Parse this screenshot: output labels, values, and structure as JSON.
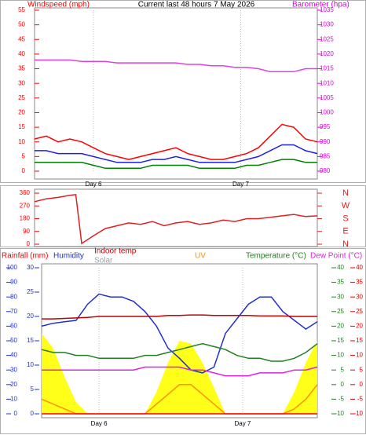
{
  "chart_data": [
    {
      "type": "line",
      "title": "Current last 48 hours 7 May 2026",
      "ylabel": "Windspeed (mph)",
      "y2label": "Barometer (hpa)",
      "x": [
        0,
        2,
        4,
        6,
        8,
        10,
        12,
        14,
        16,
        18,
        20,
        22,
        24,
        26,
        28,
        30,
        32,
        34,
        36,
        38,
        40,
        42,
        44,
        46,
        48
      ],
      "xlim": [
        0,
        48
      ],
      "xticks": [
        {
          "value": 10,
          "label": "Day 6"
        },
        {
          "value": 35,
          "label": "Day 7"
        }
      ],
      "ylim": [
        0,
        55
      ],
      "yticks": [
        0,
        5,
        10,
        15,
        20,
        25,
        30,
        35,
        40,
        45,
        50,
        55
      ],
      "y2lim": [
        980,
        1035
      ],
      "y2ticks": [
        980,
        985,
        990,
        995,
        1000,
        1005,
        1010,
        1015,
        1020,
        1025,
        1030,
        1035
      ],
      "grid": true,
      "series": [
        {
          "color": "#ff0000",
          "values": [
            11,
            12,
            10,
            11,
            10,
            8,
            6,
            5,
            4,
            5,
            6,
            7,
            8,
            6,
            5,
            4,
            4,
            5,
            6,
            8,
            12,
            16,
            15,
            11,
            10
          ]
        },
        {
          "color": "#2020e0",
          "values": [
            7,
            7,
            6,
            6,
            6,
            5,
            4,
            3,
            3,
            3,
            4,
            4,
            5,
            4,
            3,
            3,
            3,
            3,
            4,
            5,
            7,
            9,
            9,
            7,
            6
          ]
        },
        {
          "color": "#008000",
          "values": [
            3,
            3,
            3,
            3,
            3,
            2,
            1,
            1,
            1,
            1,
            2,
            2,
            2,
            2,
            1,
            1,
            1,
            1,
            2,
            2,
            3,
            4,
            4,
            3,
            3
          ]
        },
        {
          "color": "#e040e0",
          "axis": "y2",
          "values": [
            1018,
            1018,
            1018,
            1018,
            1017.5,
            1017.5,
            1017.5,
            1017,
            1017,
            1017,
            1017,
            1017,
            1017,
            1016.5,
            1016.5,
            1016,
            1016,
            1015.5,
            1015.5,
            1015,
            1014,
            1014,
            1014,
            1015,
            1015
          ]
        }
      ]
    },
    {
      "type": "line",
      "x": [
        0,
        2,
        4,
        6,
        7,
        8,
        10,
        12,
        14,
        16,
        18,
        20,
        22,
        24,
        26,
        28,
        30,
        32,
        34,
        36,
        38,
        40,
        42,
        44,
        46,
        48
      ],
      "xlim": [
        0,
        48
      ],
      "ylim": [
        0,
        360
      ],
      "yticks": [
        0,
        90,
        180,
        270,
        360
      ],
      "y2lim": [
        0,
        360
      ],
      "y2ticks": [
        {
          "value": 0,
          "label": "N"
        },
        {
          "value": 90,
          "label": "E"
        },
        {
          "value": 180,
          "label": "S"
        },
        {
          "value": 270,
          "label": "W"
        },
        {
          "value": 360,
          "label": "N"
        }
      ],
      "series": [
        {
          "color": "#e02020",
          "values": [
            300,
            320,
            330,
            345,
            350,
            5,
            60,
            110,
            130,
            150,
            140,
            160,
            130,
            150,
            160,
            140,
            150,
            170,
            160,
            180,
            180,
            190,
            200,
            210,
            195,
            200
          ]
        }
      ]
    },
    {
      "type": "line",
      "x": [
        0,
        2,
        4,
        6,
        8,
        10,
        12,
        14,
        16,
        18,
        20,
        22,
        24,
        26,
        28,
        30,
        32,
        34,
        36,
        38,
        40,
        42,
        44,
        46,
        48
      ],
      "xlim": [
        0,
        48
      ],
      "xticks": [
        {
          "value": 10,
          "label": "Day 6"
        },
        {
          "value": 35,
          "label": "Day 7"
        }
      ],
      "ylim": [
        0,
        100
      ],
      "yticks": [
        0,
        10,
        20,
        30,
        40,
        50,
        60,
        70,
        80,
        90,
        100
      ],
      "y2lim": [
        0,
        30
      ],
      "y2ticks": [
        0,
        5,
        10,
        15,
        20,
        25,
        30
      ],
      "y3lim": [
        -10,
        40
      ],
      "y3ticks": [
        -10,
        -5,
        0,
        5,
        10,
        15,
        20,
        25,
        30,
        35,
        40
      ],
      "y4lim": [
        -10,
        40
      ],
      "y4ticks": [
        -10,
        -5,
        0,
        5,
        10,
        15,
        20,
        25,
        30,
        35,
        40
      ],
      "grid": true,
      "series": [
        {
          "name": "Solar",
          "color": "#ffff00",
          "legend_color": "#a0a0a0",
          "style": "area",
          "values": [
            55,
            45,
            25,
            8,
            0,
            0,
            0,
            0,
            0,
            0,
            15,
            35,
            50,
            48,
            35,
            18,
            0,
            0,
            0,
            0,
            0,
            0,
            15,
            35,
            50
          ]
        },
        {
          "name": "UV",
          "color": "#ff9000",
          "axis": "y2",
          "values": [
            3,
            2,
            1,
            0,
            0,
            0,
            0,
            0,
            0,
            0,
            2,
            4,
            6,
            6,
            4,
            2,
            0,
            0,
            0,
            0,
            0,
            0,
            1,
            3,
            6
          ]
        },
        {
          "name": "Rainfall (mm)",
          "color": "#ff0000",
          "axis": "y2",
          "values": [
            0,
            0,
            0,
            0,
            0,
            0,
            0,
            0,
            0,
            0,
            0,
            0,
            0,
            0,
            0,
            0,
            0,
            0,
            0,
            0,
            0,
            0,
            0,
            0,
            0
          ]
        },
        {
          "name": "Humidity",
          "color": "#2030d0",
          "values": [
            60,
            62,
            63,
            64,
            75,
            82,
            80,
            80,
            77,
            70,
            60,
            45,
            38,
            30,
            28,
            32,
            55,
            65,
            75,
            80,
            80,
            70,
            64,
            58,
            63
          ]
        },
        {
          "name": "Indoor temp",
          "color": "#c00000",
          "axis": "y2",
          "values": [
            19.5,
            19.5,
            19.6,
            19.7,
            19.8,
            20,
            20,
            20,
            20,
            20,
            20,
            20.2,
            20.2,
            20.3,
            20.3,
            20.2,
            20.2,
            20.2,
            20.2,
            20.1,
            20.1,
            20.1,
            20,
            20,
            20
          ]
        },
        {
          "name": "Temperature (°C)",
          "color": "#208020",
          "axis": "y3",
          "values": [
            12,
            11,
            11,
            10,
            10,
            9,
            9,
            9,
            9,
            10,
            10,
            11,
            12,
            13,
            14,
            13,
            12,
            10,
            9,
            9,
            8,
            8,
            9,
            11,
            14
          ]
        },
        {
          "name": "Dew Point (°C)",
          "color": "#e020e0",
          "axis": "y4",
          "values": [
            5,
            5,
            5,
            5,
            5,
            5,
            5,
            5,
            5,
            6,
            6,
            6,
            6,
            5,
            5,
            4,
            3,
            3,
            3,
            4,
            4,
            4,
            5,
            5,
            6
          ]
        }
      ]
    }
  ]
}
